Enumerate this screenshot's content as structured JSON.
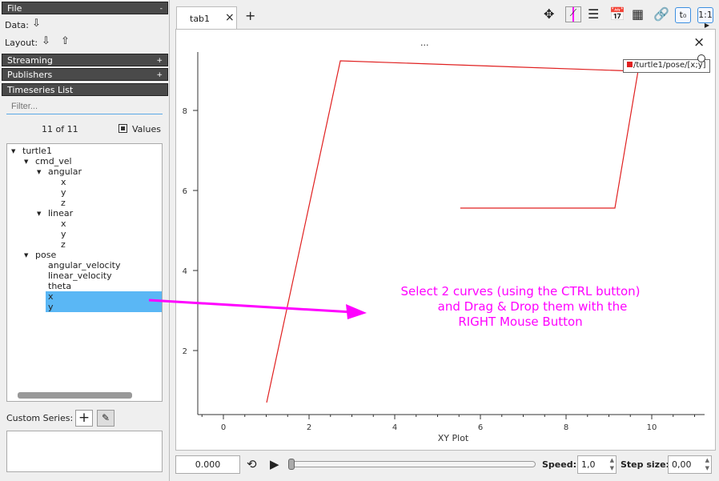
{
  "sidebar": {
    "file": {
      "title": "File",
      "toggle": "-"
    },
    "data_label": "Data:",
    "layout_label": "Layout:",
    "streaming": {
      "title": "Streaming",
      "toggle": "+"
    },
    "publishers": {
      "title": "Publishers",
      "toggle": "+"
    },
    "timeseries": {
      "title": "Timeseries List"
    },
    "filter_placeholder": "Filter...",
    "count": "11 of 11",
    "values_label": "Values",
    "tree": [
      {
        "label": "turtle1",
        "depth": 0,
        "expand": true
      },
      {
        "label": "cmd_vel",
        "depth": 1,
        "expand": true
      },
      {
        "label": "angular",
        "depth": 2,
        "expand": true
      },
      {
        "label": "x",
        "depth": 3
      },
      {
        "label": "y",
        "depth": 3
      },
      {
        "label": "z",
        "depth": 3
      },
      {
        "label": "linear",
        "depth": 2,
        "expand": true
      },
      {
        "label": "x",
        "depth": 3
      },
      {
        "label": "y",
        "depth": 3
      },
      {
        "label": "z",
        "depth": 3
      },
      {
        "label": "pose",
        "depth": 1,
        "expand": true
      },
      {
        "label": "angular_velocity",
        "depth": 2
      },
      {
        "label": "linear_velocity",
        "depth": 2
      },
      {
        "label": "theta",
        "depth": 2
      },
      {
        "label": "x",
        "depth": 2,
        "selected": true
      },
      {
        "label": "y",
        "depth": 2,
        "selected": true
      }
    ],
    "custom_series_label": "Custom Series:"
  },
  "tabs": [
    {
      "label": "tab1",
      "close": "×"
    }
  ],
  "add_tab": "+",
  "toolbar": {
    "t0": "t₀",
    "ratio": "1:1"
  },
  "plot": {
    "menu": "...",
    "close": "×",
    "legend": "/turtle1/pose/[x;y]",
    "series_color": "#e02020"
  },
  "annotation": {
    "lines": [
      "Select 2 curves (using the CTRL button)",
      "and Drag & Drop them with the",
      "RIGHT Mouse Button"
    ],
    "color": "#ff00ff"
  },
  "chart_data": {
    "type": "line",
    "xlabel": "XY Plot",
    "xlim": [
      -0.5,
      11.2
    ],
    "ylim": [
      0.1,
      9.5
    ],
    "xticks": [
      0,
      2,
      4,
      6,
      8,
      10
    ],
    "yticks": [
      2,
      4,
      6,
      8
    ],
    "series": [
      {
        "name": "/turtle1/pose/[x;y]",
        "x": [
          1.01,
          2.73,
          9.68,
          9.14,
          5.53
        ],
        "y": [
          0.7,
          9.24,
          8.98,
          5.56,
          5.56
        ]
      }
    ]
  },
  "playback": {
    "time": "0.000",
    "speed_label": "Speed:",
    "speed": "1,0",
    "step_label": "Step size:",
    "step": "0,00",
    "progress": 0
  }
}
